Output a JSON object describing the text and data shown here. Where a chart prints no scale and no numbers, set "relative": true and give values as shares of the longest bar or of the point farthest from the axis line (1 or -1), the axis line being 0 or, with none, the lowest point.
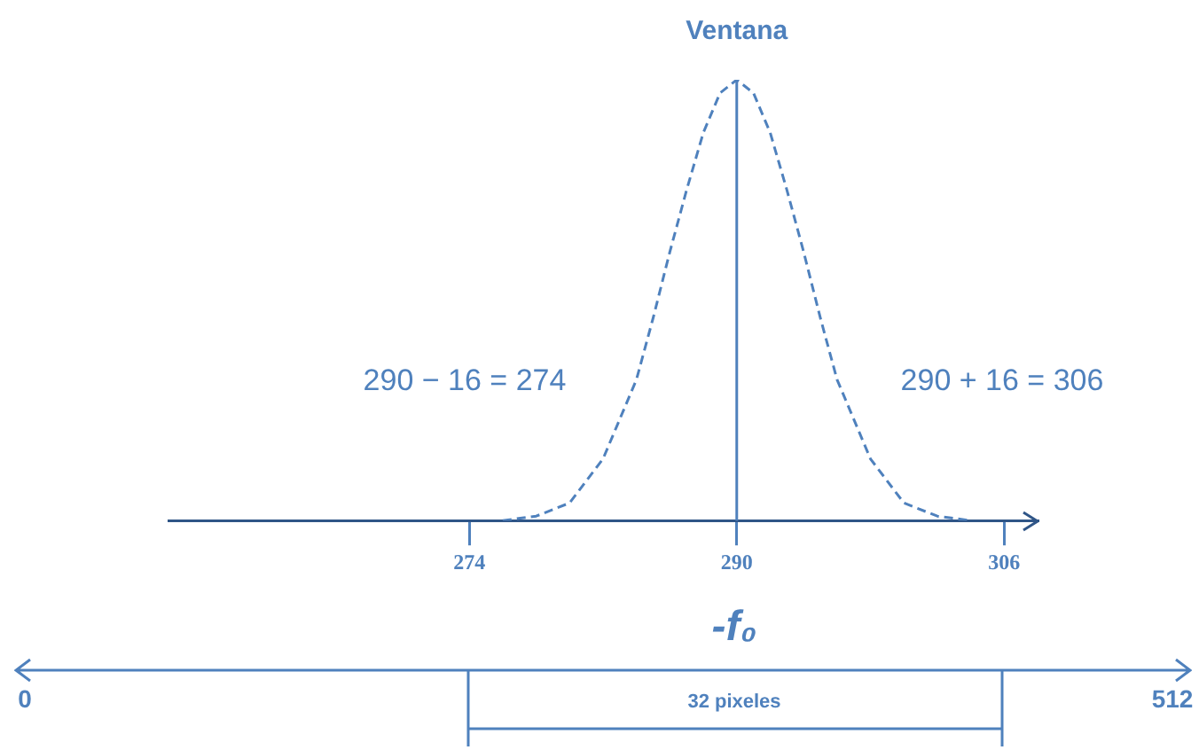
{
  "chart_data": {
    "type": "line",
    "title": "Ventana",
    "relative": true,
    "x": [
      276,
      278,
      280,
      282,
      284,
      285,
      286,
      287,
      288,
      289,
      290,
      291,
      292,
      293,
      294,
      295,
      296,
      298,
      300,
      302,
      304
    ],
    "series": [
      {
        "color": "#4f81bd",
        "values": [
          0,
          0.01,
          0.04,
          0.14,
          0.32,
          0.46,
          0.61,
          0.75,
          0.88,
          0.97,
          1,
          0.97,
          0.88,
          0.75,
          0.61,
          0.46,
          0.32,
          0.14,
          0.04,
          0.01,
          0
        ]
      }
    ],
    "xlim": [
      256,
      308
    ],
    "xticks": [
      274,
      290,
      306
    ],
    "tick_labels": "x",
    "grid": false,
    "legend": false,
    "marker": "none",
    "line_style": "dashed",
    "ref_lines": [
      {
        "axis": "x",
        "value": 290,
        "color": "#4f81bd",
        "line_style": "solid"
      }
    ],
    "annotations": [
      "290 − 16 = 274",
      "290 + 16 = 306",
      "-f₀",
      "0",
      "512",
      "32 pixeles"
    ]
  }
}
